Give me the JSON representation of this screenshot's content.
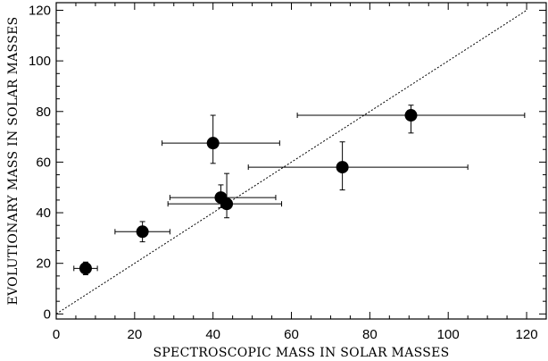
{
  "chart_data": {
    "type": "scatter",
    "title": "",
    "xlabel": "SPECTROSCOPIC MASS IN SOLAR MASSES",
    "ylabel": "EVOLUTIONARY MASS IN SOLAR MASSES",
    "xlim": [
      0,
      125
    ],
    "ylim": [
      -2,
      123
    ],
    "xticks": [
      0,
      20,
      40,
      60,
      80,
      100,
      120
    ],
    "yticks": [
      0,
      20,
      40,
      60,
      80,
      100,
      120
    ],
    "xtick_labels": [
      "0",
      "20",
      "40",
      "60",
      "80",
      "100",
      "120"
    ],
    "ytick_labels": [
      "0",
      "20",
      "40",
      "60",
      "80",
      "100",
      "120"
    ],
    "grid": false,
    "reference_line": {
      "style": "dotted",
      "x": [
        0,
        120
      ],
      "y": [
        0,
        120
      ]
    },
    "points": [
      {
        "x": 7.5,
        "y": 18,
        "xerr": [
          3,
          3
        ],
        "yerr": [
          2.5,
          2.5
        ]
      },
      {
        "x": 22,
        "y": 32.5,
        "xerr": [
          7,
          7
        ],
        "yerr": [
          4,
          4
        ]
      },
      {
        "x": 40,
        "y": 67.5,
        "xerr": [
          13,
          17
        ],
        "yerr": [
          8,
          11
        ]
      },
      {
        "x": 42,
        "y": 46,
        "xerr": [
          13,
          14
        ],
        "yerr": [
          4,
          5
        ]
      },
      {
        "x": 43.5,
        "y": 43.5,
        "xerr": [
          15,
          14
        ],
        "yerr": [
          5.5,
          12
        ]
      },
      {
        "x": 73,
        "y": 58,
        "xerr": [
          24,
          32
        ],
        "yerr": [
          9,
          10
        ]
      },
      {
        "x": 90.5,
        "y": 78.5,
        "xerr": [
          29,
          29
        ],
        "yerr": [
          7,
          4
        ]
      }
    ]
  }
}
